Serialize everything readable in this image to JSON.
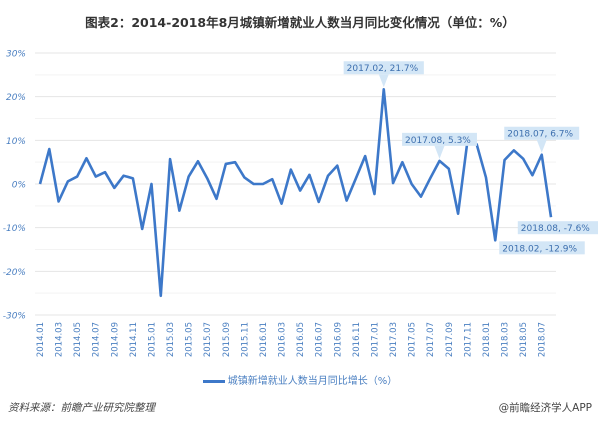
{
  "title": "图表2：2014-2018年8月城镇新增就业人数当月同比变化情况（单位：%）",
  "source": "资料来源：前瞻产业研究院整理",
  "watermark": "@前瞻经济学人APP",
  "chart_data": {
    "type": "line",
    "title": "图表2：2014-2018年8月城镇新增就业人数当月同比变化情况（单位：%）",
    "xlabel": "",
    "ylabel": "",
    "ylim": [
      -30,
      30
    ],
    "yticks": [
      "30%",
      "20%",
      "10%",
      "0%",
      "-10%",
      "-20%",
      "-30%"
    ],
    "ytick_values": [
      30,
      20,
      10,
      0,
      -10,
      -20,
      -30
    ],
    "grid": true,
    "legend_position": "bottom",
    "color": "#3d78c9",
    "x": [
      "2014.01",
      "2014.02",
      "2014.03",
      "2014.04",
      "2014.05",
      "2014.06",
      "2014.07",
      "2014.08",
      "2014.09",
      "2014.10",
      "2014.11",
      "2014.12",
      "2015.01",
      "2015.02",
      "2015.03",
      "2015.04",
      "2015.05",
      "2015.06",
      "2015.07",
      "2015.08",
      "2015.09",
      "2015.10",
      "2015.11",
      "2015.12",
      "2016.01",
      "2016.02",
      "2016.03",
      "2016.04",
      "2016.05",
      "2016.06",
      "2016.07",
      "2016.08",
      "2016.09",
      "2016.10",
      "2016.11",
      "2016.12",
      "2017.01",
      "2017.02",
      "2017.03",
      "2017.04",
      "2017.05",
      "2017.06",
      "2017.07",
      "2017.08",
      "2017.09",
      "2017.10",
      "2017.11",
      "2017.12",
      "2018.01",
      "2018.02",
      "2018.03",
      "2018.04",
      "2018.05",
      "2018.06",
      "2018.07",
      "2018.08"
    ],
    "xtick_labels": [
      "2014.01",
      "2014.03",
      "2014.05",
      "2014.07",
      "2014.09",
      "2014.11",
      "2015.01",
      "2015.03",
      "2015.05",
      "2015.07",
      "2015.09",
      "2015.11",
      "2016.01",
      "2016.03",
      "2016.05",
      "2016.07",
      "2016.09",
      "2016.11",
      "2017.01",
      "2017.03",
      "2017.05",
      "2017.07",
      "2017.09",
      "2017.11",
      "2018.01",
      "2018.03",
      "2018.05",
      "2018.07"
    ],
    "series": [
      {
        "name": "城镇新增就业人数当月同比增长（%）",
        "values": [
          0,
          8.0,
          -4.0,
          0.6,
          1.7,
          5.9,
          1.7,
          2.7,
          -0.9,
          1.9,
          1.3,
          -10.3,
          0,
          -25.6,
          5.7,
          -6.1,
          1.7,
          5.2,
          1.3,
          -3.4,
          4.6,
          5.0,
          1.5,
          0,
          0,
          1.1,
          -4.5,
          3.3,
          -1.5,
          2.1,
          -4.1,
          1.9,
          4.2,
          -3.8,
          1.3,
          6.4,
          -2.3,
          21.7,
          0.2,
          5.0,
          0,
          -2.9,
          1.3,
          5.3,
          3.5,
          -6.8,
          9.7,
          9.1,
          1.5,
          -12.9,
          5.5,
          7.7,
          5.8,
          2.0,
          6.7,
          -7.6
        ]
      }
    ],
    "annotations": [
      {
        "x": "2017.02",
        "text": "2017.02, 21.7%",
        "pos": "above"
      },
      {
        "x": "2017.08",
        "text": "2017.08, 5.3%",
        "pos": "above"
      },
      {
        "x": "2018.07",
        "text": "2018.07, 6.7%",
        "pos": "above"
      },
      {
        "x": "2018.02",
        "text": "2018.02, -12.9%",
        "pos": "below"
      },
      {
        "x": "2018.08",
        "text": "2018.08, -7.6%",
        "pos": "below"
      }
    ]
  }
}
